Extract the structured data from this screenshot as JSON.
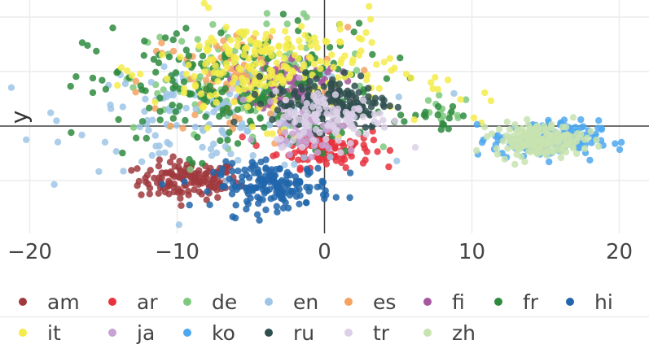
{
  "chart_data": {
    "type": "scatter",
    "ylabel": "y",
    "xlabel": "",
    "xlim": [
      -22,
      22
    ],
    "ylim": [
      -10,
      10
    ],
    "xticks": [
      {
        "value": -20,
        "label": "−20"
      },
      {
        "value": -10,
        "label": "−10"
      },
      {
        "value": 0,
        "label": "0"
      },
      {
        "value": 10,
        "label": "10"
      },
      {
        "value": 20,
        "label": "20"
      }
    ],
    "ygrid": [
      -7,
      -2,
      0,
      2,
      4,
      7
    ],
    "grid": true,
    "legend_position": "bottom",
    "series": [
      {
        "name": "am",
        "color": "#a0393e",
        "clusters": [
          {
            "cx": -9.2,
            "cy": -2.0,
            "sx": 1.7,
            "sy": 0.35,
            "n": 130
          }
        ]
      },
      {
        "name": "ar",
        "color": "#e8323e",
        "clusters": [
          {
            "cx": 0.0,
            "cy": -0.8,
            "sx": 1.6,
            "sy": 0.35,
            "n": 120
          }
        ]
      },
      {
        "name": "de",
        "color": "#7fc97f",
        "clusters": [
          {
            "cx": -5.0,
            "cy": 1.8,
            "sx": 4.0,
            "sy": 1.0,
            "n": 130
          },
          {
            "cx": 8.0,
            "cy": 0.5,
            "sx": 1.0,
            "sy": 0.3,
            "n": 12
          }
        ]
      },
      {
        "name": "en",
        "color": "#9ec5e6",
        "clusters": [
          {
            "cx": -7.0,
            "cy": 0.4,
            "sx": 5.0,
            "sy": 1.0,
            "n": 160
          }
        ]
      },
      {
        "name": "es",
        "color": "#f4a261",
        "clusters": [
          {
            "cx": -5.5,
            "cy": 1.6,
            "sx": 3.5,
            "sy": 1.0,
            "n": 100
          }
        ]
      },
      {
        "name": "fi",
        "color": "#a6579f",
        "clusters": [
          {
            "cx": -2.0,
            "cy": 1.6,
            "sx": 1.5,
            "sy": 0.5,
            "n": 80
          }
        ]
      },
      {
        "name": "fr",
        "color": "#2e8b3e",
        "clusters": [
          {
            "cx": -6.0,
            "cy": 1.3,
            "sx": 5.0,
            "sy": 1.2,
            "n": 220
          },
          {
            "cx": 7.5,
            "cy": 0.3,
            "sx": 1.2,
            "sy": 0.25,
            "n": 15
          }
        ]
      },
      {
        "name": "hi",
        "color": "#2166ac",
        "clusters": [
          {
            "cx": -3.5,
            "cy": -2.2,
            "sx": 2.0,
            "sy": 0.4,
            "n": 170
          }
        ]
      },
      {
        "name": "it",
        "color": "#f5ec4a",
        "clusters": [
          {
            "cx": -3.5,
            "cy": 2.1,
            "sx": 4.0,
            "sy": 1.0,
            "n": 230
          },
          {
            "cx": 9.0,
            "cy": 0.6,
            "sx": 1.2,
            "sy": 0.4,
            "n": 8
          }
        ]
      },
      {
        "name": "ja",
        "color": "#c8a2d4",
        "clusters": [
          {
            "cx": -1.0,
            "cy": 0.2,
            "sx": 1.5,
            "sy": 0.6,
            "n": 70
          }
        ]
      },
      {
        "name": "ko",
        "color": "#4ea8f0",
        "clusters": [
          {
            "cx": 15.0,
            "cy": -0.5,
            "sx": 1.8,
            "sy": 0.35,
            "n": 160
          }
        ]
      },
      {
        "name": "ru",
        "color": "#2f4f4f",
        "clusters": [
          {
            "cx": 0.5,
            "cy": 0.9,
            "sx": 2.0,
            "sy": 0.5,
            "n": 150
          }
        ]
      },
      {
        "name": "tr",
        "color": "#dcd0e8",
        "clusters": [
          {
            "cx": 0.5,
            "cy": 0.3,
            "sx": 2.0,
            "sy": 0.5,
            "n": 100
          }
        ]
      },
      {
        "name": "zh",
        "color": "#c8e3b0",
        "clusters": [
          {
            "cx": 14.5,
            "cy": -0.5,
            "sx": 1.5,
            "sy": 0.3,
            "n": 180
          }
        ]
      }
    ]
  }
}
